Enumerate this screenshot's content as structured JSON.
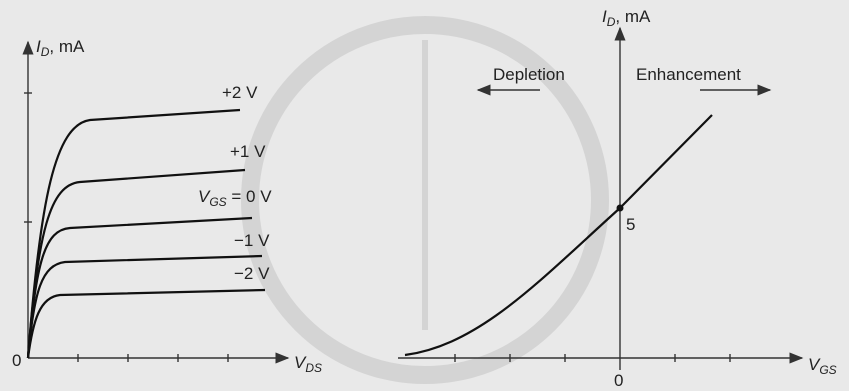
{
  "left_plot": {
    "y_axis_label": {
      "symbol": "I",
      "subscript": "D",
      "unit": ", mA"
    },
    "x_axis_label": {
      "symbol": "V",
      "subscript": "DS"
    },
    "origin": "0",
    "curve_labels": [
      "+2 V",
      "+1 V",
      "−1 V",
      "−2 V"
    ],
    "gs_label": {
      "symbol": "V",
      "subscript": "GS",
      "rest": " = 0 V"
    }
  },
  "right_plot": {
    "y_axis_label": {
      "symbol": "I",
      "subscript": "D",
      "unit": ", mA"
    },
    "regions": [
      "Depletion",
      "Enhancement"
    ],
    "y_marker": "5",
    "origin": "0",
    "x_axis_label": {
      "symbol": "V",
      "subscript": "GS"
    }
  }
}
